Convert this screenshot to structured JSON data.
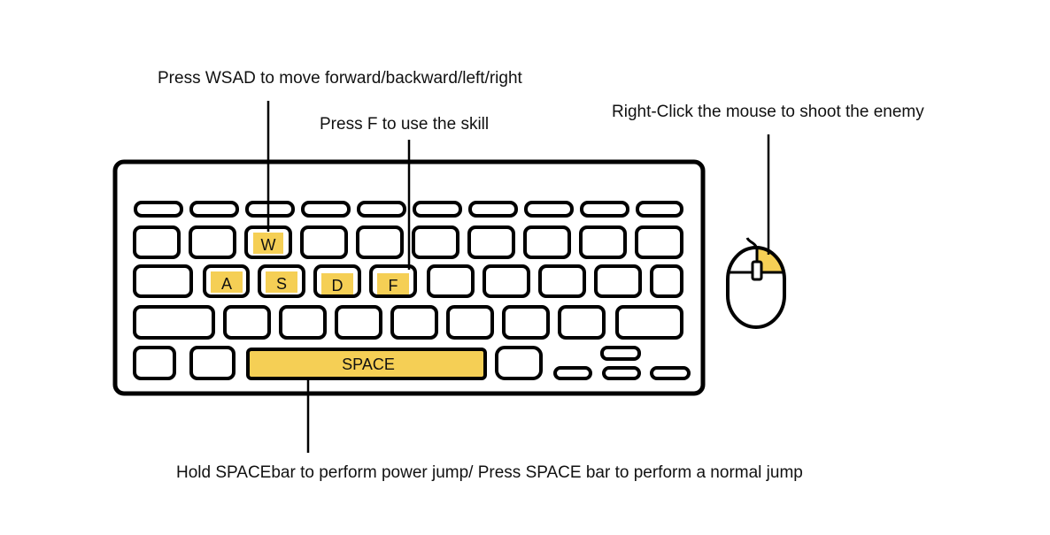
{
  "callouts": {
    "wsad": "Press WSAD to move forward/backward/left/right",
    "skill": "Press F to use the skill",
    "mouse": "Right-Click the mouse to shoot the enemy",
    "space": "Hold SPACEbar to perform power jump/ Press SPACE bar to perform a normal jump"
  },
  "keys": {
    "w": "W",
    "a": "A",
    "s": "S",
    "d": "D",
    "f": "F",
    "space": "SPACE"
  },
  "colors": {
    "highlight": "#f5cf55",
    "outline": "#000000",
    "background": "#ffffff"
  }
}
